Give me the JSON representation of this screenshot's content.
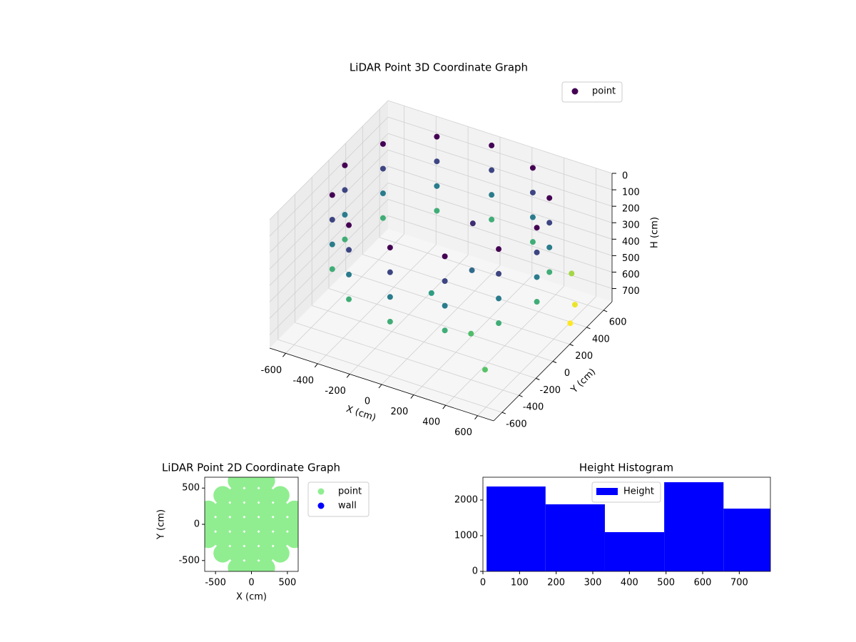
{
  "chart_data": [
    {
      "type": "scatter3d",
      "title": "LiDAR Point 3D Coordinate Graph",
      "x_label": "X (cm)",
      "y_label": "Y (cm)",
      "z_label": "H (cm)",
      "xlim": [
        -700,
        700
      ],
      "ylim": [
        -700,
        700
      ],
      "zlim": [
        780,
        0
      ],
      "xticks": [
        -600,
        -400,
        -200,
        0,
        200,
        400,
        600
      ],
      "yticks": [
        -600,
        -400,
        -200,
        0,
        200,
        400,
        600
      ],
      "zticks": [
        0,
        100,
        200,
        300,
        400,
        500,
        600,
        700
      ],
      "colormap": "viridis",
      "grid": true,
      "legend": "upper right",
      "series": [
        {
          "name": "point",
          "x": [
            600,
            520,
            300,
            0,
            -300,
            -520,
            -600,
            -520,
            -300,
            0,
            300,
            520,
            600,
            520,
            300,
            0,
            -300,
            -520,
            -600,
            -520,
            -300,
            0,
            300,
            520,
            600,
            520,
            300,
            0,
            -300,
            -520,
            -600,
            -520,
            -300,
            0,
            300,
            520,
            600,
            520,
            300,
            0,
            -300,
            -520,
            -600,
            -520,
            -300,
            0,
            300,
            520,
            200,
            300,
            100,
            400,
            620,
            600,
            650,
            500
          ],
          "y": [
            0,
            300,
            520,
            600,
            520,
            300,
            0,
            -300,
            -520,
            -600,
            -520,
            -300,
            0,
            300,
            520,
            600,
            520,
            300,
            0,
            -300,
            -520,
            -600,
            -520,
            -300,
            0,
            300,
            520,
            600,
            520,
            300,
            0,
            -300,
            -520,
            -600,
            -520,
            -300,
            0,
            300,
            520,
            600,
            520,
            300,
            0,
            -300,
            -520,
            -600,
            -520,
            -300,
            0,
            -200,
            -300,
            -400,
            -650,
            450,
            300,
            600
          ],
          "z": [
            0,
            0,
            0,
            0,
            0,
            0,
            0,
            0,
            0,
            0,
            0,
            0,
            150,
            150,
            150,
            150,
            150,
            150,
            150,
            150,
            150,
            150,
            150,
            150,
            300,
            300,
            300,
            300,
            300,
            300,
            300,
            300,
            300,
            300,
            300,
            300,
            450,
            450,
            450,
            450,
            450,
            450,
            450,
            450,
            450,
            450,
            450,
            450,
            100,
            250,
            400,
            500,
            520,
            700,
            720,
            620
          ]
        }
      ]
    },
    {
      "type": "scatter",
      "title": "LiDAR Point 2D Coordinate Graph",
      "x_label": "X (cm)",
      "y_label": "Y (cm)",
      "xlim": [
        -650,
        650
      ],
      "ylim": [
        -650,
        650
      ],
      "xticks": [
        -500,
        0,
        500
      ],
      "yticks": [
        -500,
        0,
        500
      ],
      "legend": "outside right",
      "series": [
        {
          "name": "point",
          "color": "#90ee90",
          "x": [
            -600,
            -600,
            -600,
            -400,
            -400,
            -400,
            -400,
            -400,
            -200,
            -200,
            -200,
            -200,
            -200,
            -200,
            -200,
            0,
            0,
            0,
            0,
            0,
            0,
            0,
            200,
            200,
            200,
            200,
            200,
            200,
            200,
            400,
            400,
            400,
            400,
            400,
            600,
            600,
            600
          ],
          "y": [
            -200,
            0,
            200,
            -400,
            -200,
            0,
            200,
            400,
            -600,
            -400,
            -200,
            0,
            200,
            400,
            600,
            -600,
            -400,
            -200,
            0,
            200,
            400,
            600,
            -600,
            -400,
            -200,
            0,
            200,
            400,
            600,
            -400,
            -200,
            0,
            200,
            400,
            -200,
            0,
            200
          ]
        },
        {
          "name": "wall",
          "color": "#0000ff",
          "x": [],
          "y": []
        }
      ]
    },
    {
      "type": "histogram",
      "title": "Height Histogram",
      "name": "Height",
      "color": "#0000ff",
      "legend": "upper center",
      "bins": [
        10,
        171,
        333,
        495,
        657,
        785
      ],
      "values": [
        2380,
        1880,
        1100,
        2500,
        1760
      ],
      "xlim": [
        0,
        785
      ],
      "ylim": [
        0,
        2640
      ],
      "xticks": [
        0,
        100,
        200,
        300,
        400,
        500,
        600,
        700
      ],
      "yticks": [
        0,
        1000,
        2000
      ]
    }
  ]
}
